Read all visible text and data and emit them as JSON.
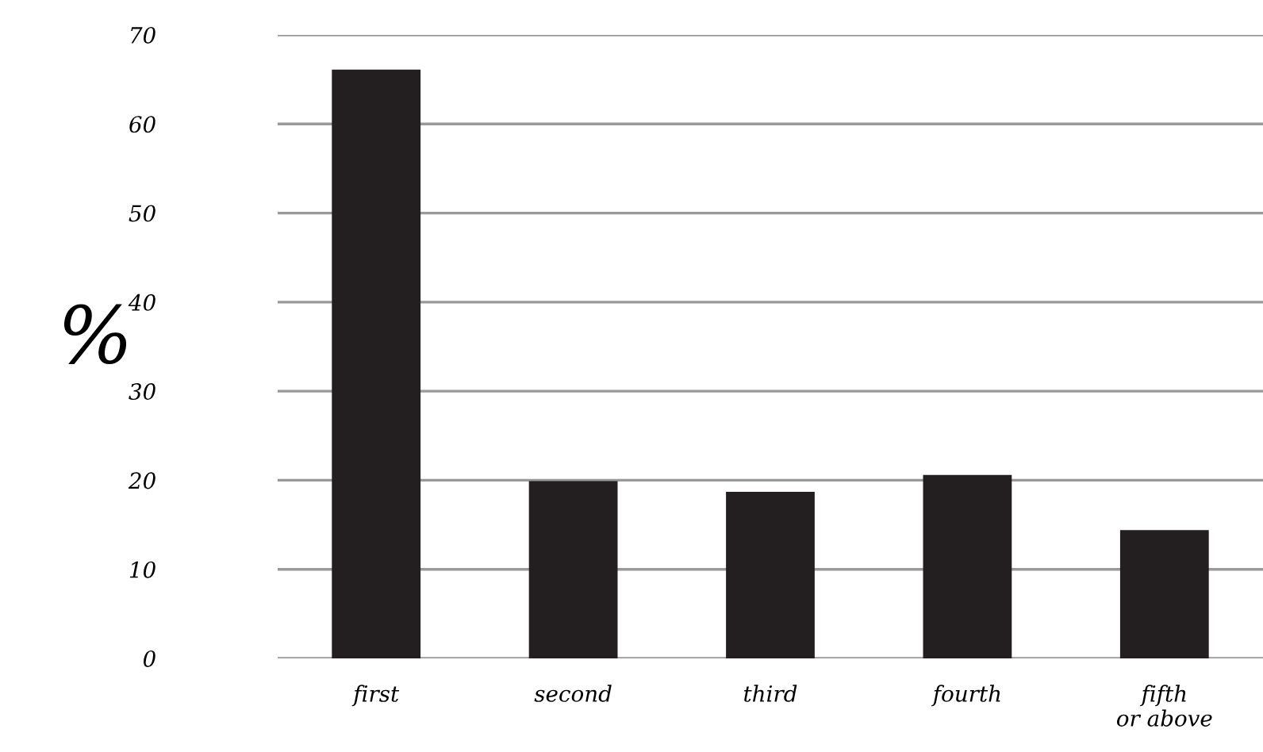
{
  "chart_data": {
    "type": "bar",
    "ylabel": "%",
    "categories": [
      "first",
      "second",
      "third",
      "fourth",
      "fifth\nor above"
    ],
    "values": [
      66.1,
      19.9,
      18.7,
      20.6,
      14.4
    ],
    "color": "#231f20",
    "ylim": [
      0,
      70
    ],
    "yticks": [
      0,
      10,
      20,
      30,
      40,
      50,
      60,
      70
    ],
    "grid": "y"
  }
}
